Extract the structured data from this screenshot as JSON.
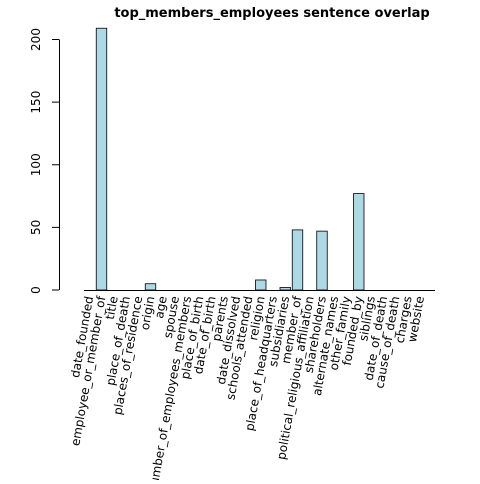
{
  "chart_data": {
    "type": "bar",
    "title": "top_members_employees sentence overlap",
    "xlabel": "",
    "ylabel": "",
    "ylim": [
      0,
      210
    ],
    "yticks": [
      0,
      50,
      100,
      150,
      200
    ],
    "bar_color": "#add8e6",
    "bar_edge_color": "#000000",
    "categories": [
      "date_founded",
      "employee_or_member_of",
      "title",
      "place_of_death",
      "places_of_residence",
      "origin",
      "age",
      "spouse",
      "number_of_employees_members",
      "place_of_birth",
      "date_of_birth",
      "parents",
      "date_dissolved",
      "schools_attended",
      "religion",
      "place_of_headquarters",
      "subsidiaries",
      "member_of",
      "political_religious_affiliation",
      "shareholders",
      "alternate_names",
      "other_family",
      "founded_by",
      "siblings",
      "date_of_death",
      "cause_of_death",
      "charges",
      "website"
    ],
    "values": [
      0,
      209,
      0,
      0,
      0,
      5,
      0,
      0,
      0,
      0,
      0,
      0,
      0,
      0,
      8,
      0,
      2,
      48,
      0,
      47,
      0,
      0,
      77,
      0,
      0,
      0,
      0,
      0
    ],
    "grid": false,
    "legend": "none"
  }
}
